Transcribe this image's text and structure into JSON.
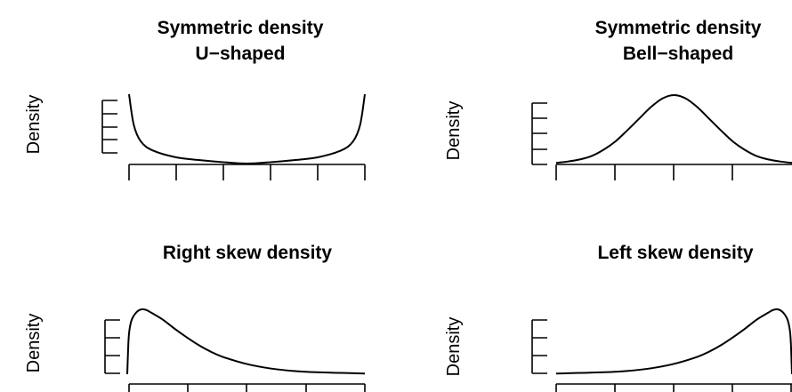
{
  "figure": {
    "panels": [
      {
        "title_line1": "Symmetric density",
        "title_line2": "U−shaped",
        "ylabel": "Density",
        "shape": "u-shaped"
      },
      {
        "title_line1": "Symmetric density",
        "title_line2": "Bell−shaped",
        "ylabel": "Density",
        "shape": "bell-shaped"
      },
      {
        "title_line1": "Right skew density",
        "title_line2": "",
        "ylabel": "Density",
        "shape": "right-skew"
      },
      {
        "title_line1": "Left skew density",
        "title_line2": "",
        "ylabel": "Density",
        "shape": "left-skew"
      }
    ]
  },
  "chart_data": [
    {
      "type": "line",
      "title": "Symmetric density\nU−shaped",
      "ylabel": "Density",
      "xlabel": "",
      "xlim": [
        0,
        1
      ],
      "ylim": [
        0,
        1
      ],
      "x": [
        0.0,
        0.02,
        0.05,
        0.1,
        0.2,
        0.3,
        0.4,
        0.5,
        0.6,
        0.7,
        0.8,
        0.9,
        0.95,
        0.98,
        1.0
      ],
      "y": [
        1.0,
        0.56,
        0.32,
        0.19,
        0.09,
        0.05,
        0.02,
        0.0,
        0.02,
        0.05,
        0.09,
        0.19,
        0.32,
        0.56,
        1.0
      ],
      "grid": false
    },
    {
      "type": "line",
      "title": "Symmetric density\nBell−shaped",
      "ylabel": "Density",
      "xlabel": "",
      "xlim": [
        0,
        1
      ],
      "ylim": [
        0,
        1
      ],
      "x": [
        0.0,
        0.05,
        0.1,
        0.15,
        0.2,
        0.25,
        0.3,
        0.35,
        0.4,
        0.45,
        0.5,
        0.55,
        0.6,
        0.65,
        0.7,
        0.75,
        0.8,
        0.85,
        0.9,
        0.95,
        1.0
      ],
      "y": [
        0.01,
        0.03,
        0.06,
        0.11,
        0.2,
        0.32,
        0.48,
        0.65,
        0.82,
        0.95,
        1.0,
        0.95,
        0.82,
        0.65,
        0.48,
        0.32,
        0.2,
        0.11,
        0.06,
        0.03,
        0.01
      ],
      "grid": false
    },
    {
      "type": "line",
      "title": "Right skew density",
      "ylabel": "Density",
      "xlabel": "",
      "xlim": [
        0,
        1
      ],
      "ylim": [
        0,
        1
      ],
      "x": [
        0.0,
        0.005,
        0.01,
        0.02,
        0.04,
        0.06,
        0.08,
        0.1,
        0.15,
        0.2,
        0.25,
        0.3,
        0.35,
        0.4,
        0.5,
        0.6,
        0.7,
        0.8,
        0.9,
        1.0
      ],
      "y": [
        0.0,
        0.5,
        0.7,
        0.85,
        0.96,
        1.0,
        0.99,
        0.95,
        0.84,
        0.7,
        0.57,
        0.45,
        0.35,
        0.27,
        0.16,
        0.09,
        0.05,
        0.03,
        0.02,
        0.01
      ],
      "grid": false
    },
    {
      "type": "line",
      "title": "Left skew density",
      "ylabel": "Density",
      "xlabel": "",
      "xlim": [
        0,
        1
      ],
      "ylim": [
        0,
        1
      ],
      "x": [
        0.0,
        0.1,
        0.2,
        0.3,
        0.4,
        0.5,
        0.6,
        0.65,
        0.7,
        0.75,
        0.8,
        0.85,
        0.9,
        0.92,
        0.94,
        0.96,
        0.98,
        0.99,
        0.995,
        1.0
      ],
      "y": [
        0.01,
        0.02,
        0.03,
        0.05,
        0.09,
        0.16,
        0.27,
        0.35,
        0.45,
        0.57,
        0.7,
        0.84,
        0.95,
        0.99,
        1.0,
        0.96,
        0.85,
        0.7,
        0.5,
        0.0
      ],
      "grid": false
    }
  ]
}
